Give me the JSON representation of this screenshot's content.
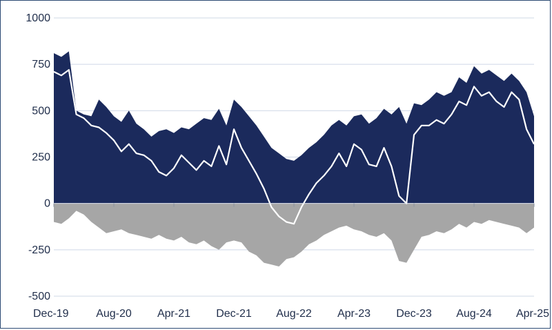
{
  "chart_data": {
    "type": "area",
    "title": "",
    "xlabel": "",
    "ylabel": "",
    "ylim": [
      -500,
      1000
    ],
    "yticks": [
      -500,
      -250,
      0,
      250,
      500,
      750,
      1000
    ],
    "ytick_labels": [
      "-500",
      "-250",
      "0",
      "250",
      "500",
      "750",
      "1000"
    ],
    "xlim": [
      "2019-12",
      "2025-04"
    ],
    "xticks": [
      "2019-12",
      "2020-08",
      "2021-04",
      "2021-12",
      "2022-08",
      "2023-04",
      "2023-12",
      "2024-08",
      "2025-04"
    ],
    "xtick_labels": [
      "Dec-19",
      "Aug-20",
      "Apr-21",
      "Dec-21",
      "Aug-22",
      "Apr-23",
      "Dec-23",
      "Aug-24",
      "Apr-25"
    ],
    "grid": true,
    "legend": "none",
    "colors": {
      "upper": "#1b2a5c",
      "lower": "#a6a6a6",
      "line": "#ffffff",
      "grid": "#cfd8e6"
    },
    "x": [
      "2019-12",
      "2020-01",
      "2020-02",
      "2020-03",
      "2020-04",
      "2020-05",
      "2020-06",
      "2020-07",
      "2020-08",
      "2020-09",
      "2020-10",
      "2020-11",
      "2020-12",
      "2021-01",
      "2021-02",
      "2021-03",
      "2021-04",
      "2021-05",
      "2021-06",
      "2021-07",
      "2021-08",
      "2021-09",
      "2021-10",
      "2021-11",
      "2021-12",
      "2022-01",
      "2022-02",
      "2022-03",
      "2022-04",
      "2022-05",
      "2022-06",
      "2022-07",
      "2022-08",
      "2022-09",
      "2022-10",
      "2022-11",
      "2022-12",
      "2023-01",
      "2023-02",
      "2023-03",
      "2023-04",
      "2023-05",
      "2023-06",
      "2023-07",
      "2023-08",
      "2023-09",
      "2023-10",
      "2023-11",
      "2023-12",
      "2024-01",
      "2024-02",
      "2024-03",
      "2024-04",
      "2024-05",
      "2024-06",
      "2024-07",
      "2024-08",
      "2024-09",
      "2024-10",
      "2024-11",
      "2024-12",
      "2025-01",
      "2025-02",
      "2025-03",
      "2025-04"
    ],
    "series": [
      {
        "values": [
          810,
          790,
          820,
          500,
          480,
          470,
          560,
          520,
          470,
          440,
          500,
          430,
          400,
          360,
          390,
          400,
          380,
          410,
          400,
          430,
          460,
          450,
          510,
          420,
          560,
          520,
          470,
          420,
          360,
          300,
          270,
          240,
          230,
          260,
          300,
          330,
          370,
          420,
          450,
          420,
          470,
          480,
          430,
          460,
          510,
          480,
          520,
          430,
          540,
          530,
          560,
          600,
          580,
          600,
          680,
          650,
          740,
          700,
          720,
          690,
          660,
          700,
          660,
          600,
          470
        ]
      },
      {
        "values": [
          -100,
          -110,
          -80,
          -40,
          -60,
          -100,
          -130,
          -160,
          -150,
          -140,
          -160,
          -170,
          -180,
          -190,
          -170,
          -190,
          -200,
          -180,
          -210,
          -220,
          -200,
          -230,
          -250,
          -210,
          -200,
          -210,
          -260,
          -280,
          -320,
          -330,
          -340,
          -300,
          -290,
          -260,
          -220,
          -200,
          -170,
          -150,
          -130,
          -120,
          -140,
          -150,
          -170,
          -180,
          -160,
          -200,
          -310,
          -320,
          -250,
          -180,
          -170,
          -150,
          -160,
          -140,
          -110,
          -130,
          -100,
          -110,
          -90,
          -100,
          -110,
          -120,
          -130,
          -160,
          -130
        ]
      },
      {
        "values": [
          710,
          690,
          720,
          480,
          460,
          420,
          410,
          380,
          340,
          280,
          320,
          270,
          260,
          230,
          170,
          150,
          190,
          260,
          220,
          180,
          230,
          200,
          310,
          210,
          400,
          300,
          230,
          160,
          80,
          -20,
          -70,
          -100,
          -110,
          -20,
          50,
          110,
          150,
          200,
          270,
          200,
          320,
          290,
          210,
          200,
          300,
          200,
          40,
          0,
          370,
          420,
          420,
          450,
          430,
          480,
          550,
          530,
          630,
          580,
          600,
          550,
          520,
          600,
          560,
          400,
          320
        ]
      }
    ]
  }
}
